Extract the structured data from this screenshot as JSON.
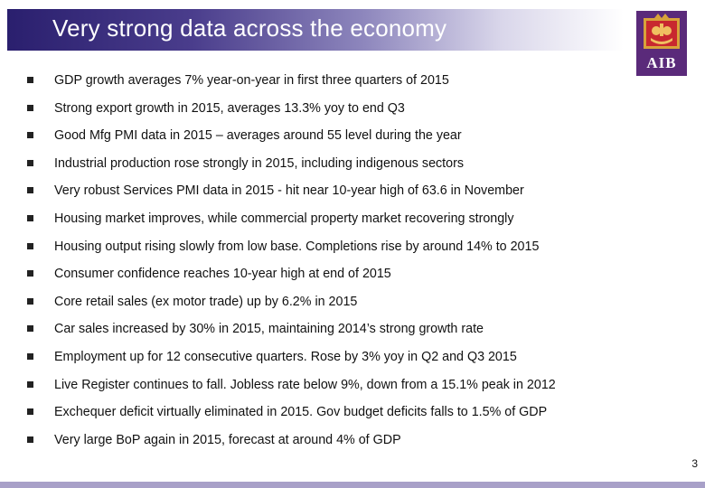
{
  "slide": {
    "title": "Very strong data across the economy",
    "page_number": "3",
    "logo": {
      "text": "AIB",
      "icon": "aib-ark-logo-icon",
      "background_color": "#5a2a7a"
    },
    "bullet_icon": "square-bullet-icon",
    "bullets": [
      "GDP growth averages 7% year-on-year in first three quarters of 2015",
      "Strong export growth in 2015, averages 13.3% yoy to end Q3",
      "Good Mfg PMI data in 2015 – averages around 55 level during the year",
      "Industrial production rose strongly in 2015, including indigenous sectors",
      "Very robust Services PMI data in 2015 -  hit near 10-year high of 63.6 in November",
      "Housing market improves, while commercial property market recovering strongly",
      "Housing output rising slowly from low base. Completions rise by around 14% to 2015",
      "Consumer confidence reaches 10-year high at end of 2015",
      "Core retail sales (ex motor trade) up by 6.2% in 2015",
      "Car sales increased by 30% in 2015, maintaining 2014’s strong growth rate",
      "Employment up for 12 consecutive quarters. Rose by 3% yoy in Q2 and Q3 2015",
      "Live Register continues to fall. Jobless rate below 9%, down from a 15.1% peak in 2012",
      "Exchequer deficit virtually eliminated in 2015. Gov budget deficits falls to 1.5% of GDP",
      "Very large BoP again in 2015, forecast at around 4% of GDP"
    ],
    "colors": {
      "title_bar": "#2a1f6e",
      "bottom_border": "#a8a0c8"
    }
  }
}
